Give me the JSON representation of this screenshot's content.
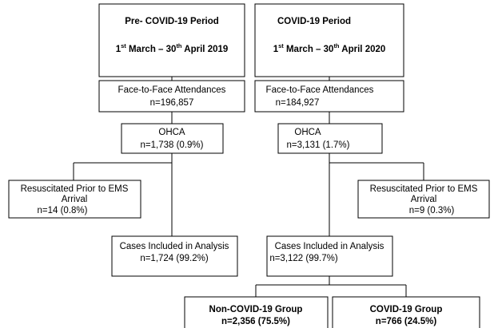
{
  "left": {
    "period": {
      "title": "Pre- COVID-19 Period",
      "date": [
        "1",
        "st",
        " March – 30",
        "th",
        " April 2019"
      ]
    },
    "attendances": {
      "label": "Face-to-Face Attendances",
      "count": "n=196,857"
    },
    "ohca": {
      "label": "OHCA",
      "count": "n=1,738 (0.9%)"
    },
    "resuscitated": {
      "label": [
        "Resuscitated Prior to EMS",
        "Arrival"
      ],
      "count": "n=14 (0.8%)"
    },
    "included": {
      "label": "Cases Included in Analysis",
      "count": "n=1,724 (99.2%)"
    }
  },
  "right": {
    "period": {
      "title": "COVID-19 Period",
      "date": [
        "1",
        "st",
        " March – 30",
        "th",
        " April 2020"
      ]
    },
    "attendances": {
      "label": "Face-to-Face Attendances",
      "count": "n=184,927"
    },
    "ohca": {
      "label": "OHCA",
      "count": "n=3,131 (1.7%)"
    },
    "resuscitated": {
      "label": [
        "Resuscitated Prior to EMS",
        "Arrival"
      ],
      "count": "n=9 (0.3%)"
    },
    "included": {
      "label": "Cases Included in Analysis",
      "count": "n=3,122 (99.7%)"
    },
    "groups": [
      {
        "label": "Non-COVID-19 Group",
        "count": "n=2,356 (75.5%)"
      },
      {
        "label": "COVID-19 Group",
        "count": "n=766 (24.5%)"
      }
    ]
  }
}
